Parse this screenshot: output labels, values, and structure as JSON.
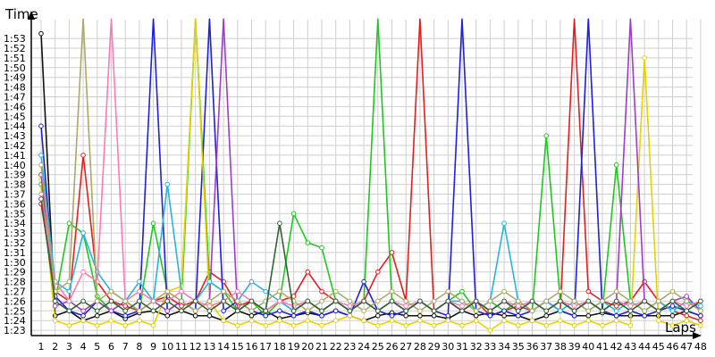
{
  "chart_data": {
    "type": "line",
    "xlabel": "Laps",
    "ylabel": "Time",
    "x_categories": [
      "1",
      "2",
      "3",
      "4",
      "5",
      "6",
      "7",
      "8",
      "9",
      "10",
      "11",
      "12",
      "13",
      "14",
      "15",
      "16",
      "17",
      "18",
      "19",
      "20",
      "21",
      "22",
      "23",
      "24",
      "25",
      "26",
      "27",
      "28",
      "29",
      "30",
      "31",
      "32",
      "33",
      "34",
      "35",
      "36",
      "37",
      "38",
      "39",
      "40",
      "41",
      "42",
      "43",
      "44",
      "45",
      "46",
      "47",
      "48"
    ],
    "y_tick_labels": [
      "1:53",
      "1:52",
      "1:51",
      "1:50",
      "1:49",
      "1:48",
      "1:47",
      "1:46",
      "1:45",
      "1:44",
      "1:43",
      "1:42",
      "1:41",
      "1:40",
      "1:39",
      "1:38",
      "1:37",
      "1:36",
      "1:35",
      "1:34",
      "1:33",
      "1:32",
      "1:31",
      "1:30",
      "1:29",
      "1:28",
      "1:27",
      "1:26",
      "1:25",
      "1:24",
      "1:23"
    ],
    "y_range_seconds": [
      82,
      113
    ],
    "grid": true,
    "legend": "none",
    "series": [
      {
        "color": "#111111",
        "values": [
          113.5,
          84.5,
          85.0,
          84.0,
          84.5,
          85.0,
          84.2,
          84.8,
          85.0,
          84.5,
          85.0,
          84.5,
          84.5,
          84.0,
          85.0,
          84.5,
          85.0,
          84.2,
          84.5,
          84.8,
          84.5,
          85.0,
          84.5,
          84.0,
          84.5,
          84.8,
          84.5,
          84.5,
          84.5,
          84.2,
          85.0,
          84.5,
          84.8,
          84.5,
          84.5,
          84.0,
          84.5,
          85.0,
          84.5,
          84.5,
          84.8,
          84.5,
          84.5,
          84.5,
          84.5,
          84.5,
          85.0,
          84.5
        ]
      },
      {
        "color": "#e61e1e",
        "values": [
          96.0,
          87.0,
          86.0,
          101.0,
          88.0,
          86.0,
          85.5,
          85.0,
          86.0,
          86.5,
          85.5,
          86.0,
          89.0,
          88.0,
          85.5,
          86.0,
          85.0,
          86.0,
          86.5,
          89.0,
          87.0,
          86.0,
          85.0,
          86.0,
          89.0,
          91.0,
          86.0,
          115,
          85.0,
          86.0,
          85.0,
          86.0,
          84.5,
          85.0,
          85.5,
          85.0,
          86.0,
          85.0,
          115,
          87.0,
          86.0,
          85.5,
          86.0,
          88.0,
          86.0,
          85.0,
          84.5,
          84.0
        ]
      },
      {
        "color": "#1ec81e",
        "values": [
          98.0,
          86.0,
          94.0,
          93.0,
          86.5,
          85.0,
          86.0,
          85.0,
          94.0,
          87.0,
          86.0,
          115,
          88.0,
          87.0,
          85.0,
          86.0,
          84.5,
          86.0,
          95.0,
          92.0,
          91.5,
          86.0,
          85.0,
          86.0,
          115,
          86.0,
          85.0,
          86.0,
          85.0,
          86.0,
          87.0,
          85.0,
          86.0,
          85.0,
          86.0,
          85.0,
          103.0,
          86.0,
          85.0,
          86.0,
          85.0,
          100.0,
          86.0,
          85.0,
          86.0,
          85.0,
          86.0,
          85.0
        ]
      },
      {
        "color": "#1e1ee6",
        "values": [
          104.0,
          86.5,
          85.0,
          84.5,
          86.0,
          85.0,
          84.5,
          85.0,
          115,
          85.0,
          86.0,
          85.0,
          115,
          85.0,
          86.0,
          85.0,
          84.5,
          85.0,
          84.5,
          85.0,
          84.5,
          85.0,
          84.5,
          88.0,
          85.0,
          84.5,
          85.0,
          86.0,
          85.0,
          84.5,
          115,
          85.0,
          84.5,
          85.0,
          84.5,
          85.0,
          86.0,
          85.0,
          84.5,
          115,
          85.0,
          84.5,
          85.0,
          84.5,
          85.0,
          85.5,
          85.0,
          84.5
        ]
      },
      {
        "color": "#e6d200",
        "values": [
          98.5,
          84.0,
          83.5,
          84.0,
          83.5,
          84.0,
          83.5,
          84.0,
          83.5,
          87.0,
          87.5,
          115,
          86.0,
          84.0,
          83.5,
          84.0,
          83.5,
          84.0,
          83.5,
          84.0,
          83.5,
          84.0,
          84.5,
          84.0,
          83.5,
          84.0,
          83.5,
          84.0,
          83.5,
          84.0,
          83.5,
          84.0,
          83.0,
          84.0,
          83.5,
          84.0,
          83.5,
          84.0,
          83.5,
          84.0,
          83.5,
          84.0,
          83.5,
          111.0,
          84.0,
          83.5,
          84.0,
          83.5
        ]
      },
      {
        "color": "#a03cc8",
        "values": [
          99.0,
          85.5,
          86.0,
          85.0,
          86.0,
          85.0,
          86.0,
          85.0,
          86.0,
          85.0,
          86.0,
          85.0,
          86.0,
          115,
          85.0,
          86.0,
          85.0,
          86.0,
          85.0,
          86.0,
          85.0,
          86.0,
          85.0,
          86.0,
          85.0,
          86.0,
          85.0,
          86.0,
          85.0,
          86.0,
          85.0,
          86.0,
          85.0,
          86.0,
          85.0,
          86.0,
          85.0,
          86.0,
          85.0,
          86.0,
          85.0,
          86.0,
          115,
          86.0,
          85.0,
          86.0,
          86.5,
          85.0
        ]
      },
      {
        "color": "#28b4dc",
        "values": [
          101.0,
          88.0,
          87.0,
          93.0,
          89.0,
          87.0,
          86.0,
          88.0,
          86.0,
          98.0,
          87.0,
          86.0,
          88.0,
          87.0,
          86.0,
          88.0,
          87.0,
          86.0,
          85.0,
          86.0,
          85.0,
          86.0,
          85.0,
          86.0,
          85.0,
          86.0,
          85.0,
          86.0,
          85.0,
          86.0,
          86.0,
          85.0,
          86.0,
          94.0,
          86.0,
          85.0,
          86.0,
          85.0,
          86.0,
          85.0,
          86.0,
          85.0,
          86.0,
          85.0,
          86.0,
          85.0,
          86.0,
          85.5
        ]
      },
      {
        "color": "#ff7ab4",
        "values": [
          97.0,
          88.0,
          86.0,
          89.0,
          88.0,
          115,
          86.0,
          87.0,
          86.0,
          86.0,
          87.0,
          86.0,
          85.5,
          86.0,
          87.0,
          86.0,
          85.0,
          86.0,
          85.5,
          86.0,
          85.0,
          86.0,
          85.5,
          86.0,
          85.0,
          86.0,
          85.5,
          86.0,
          85.0,
          86.0,
          85.5,
          86.0,
          85.0,
          86.0,
          85.5,
          86.0,
          85.0,
          86.0,
          85.5,
          86.0,
          85.0,
          86.0,
          85.5,
          86.0,
          85.0,
          86.0,
          85.5,
          86.0
        ]
      },
      {
        "color": "#aaaa64",
        "values": [
          100.0,
          87.0,
          88.0,
          115,
          86.0,
          87.0,
          86.0,
          85.0,
          86.0,
          87.0,
          86.0,
          85.0,
          86.0,
          87.0,
          86.0,
          85.0,
          86.0,
          87.0,
          86.0,
          85.0,
          86.0,
          87.0,
          86.0,
          85.0,
          86.0,
          87.0,
          86.0,
          85.0,
          86.0,
          87.0,
          86.0,
          85.0,
          86.0,
          87.0,
          86.0,
          85.0,
          86.0,
          87.0,
          86.0,
          85.0,
          86.0,
          87.0,
          86.0,
          85.0,
          86.0,
          87.0,
          86.0,
          85.0
        ]
      },
      {
        "color": "#326432",
        "values": [
          96.5,
          86.0,
          85.0,
          86.0,
          85.0,
          86.0,
          85.0,
          86.0,
          85.0,
          86.0,
          85.0,
          86.0,
          85.0,
          86.0,
          85.0,
          86.0,
          85.0,
          94.0,
          85.0,
          86.0,
          85.0,
          86.0,
          85.0,
          86.0,
          85.0,
          86.0,
          85.0,
          86.0,
          85.0,
          86.0,
          85.0,
          86.0,
          85.0,
          86.0,
          85.0,
          86.0,
          85.0,
          86.0,
          85.0,
          86.0,
          85.0,
          86.0,
          85.0,
          86.0,
          85.0,
          86.0,
          85.0,
          86.0
        ]
      }
    ]
  }
}
